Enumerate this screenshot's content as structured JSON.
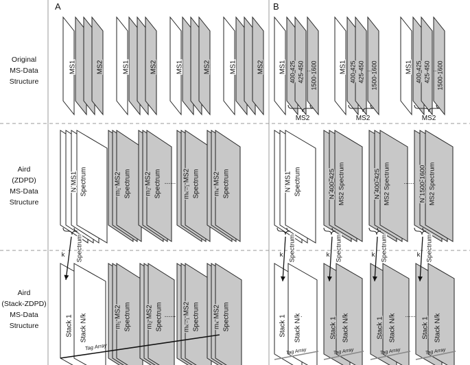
{
  "panels": {
    "a": "A",
    "b": "B"
  },
  "row_labels": {
    "original": [
      "Original",
      "MS-Data",
      "Structure"
    ],
    "zdpd": [
      "Aird",
      "(ZDPD)",
      "MS-Data",
      "Structure"
    ],
    "stack": [
      "Aird",
      "(Stack-ZDPD)",
      "MS-Data",
      "Structure"
    ]
  },
  "row1_a": {
    "ms1": "MS1",
    "ms2": "MS2"
  },
  "row1_b": {
    "ms1": "MS1",
    "w1": "400-425",
    "w2": "425-450",
    "dots": "...",
    "wn": "1500-1600",
    "ms2": "MS2"
  },
  "row2_a": {
    "ms1_l1": "N MS1",
    "ms1_l2": "Spectrum",
    "ms2_l1": [
      "m₁ MS2",
      "m₂ MS2",
      "mₖ₋₁ MS2",
      "mₖ MS2"
    ],
    "ms2_l2": "Spectrum",
    "dots": "......"
  },
  "row2_b": {
    "ms1_l1": "N MS1",
    "ms1_l2": "Spectrum",
    "g_l1": [
      "N 400-425",
      "N 400-425",
      "N 1500-1600"
    ],
    "g_l2": "MS2 Spectrum",
    "dots": "......"
  },
  "arrows": {
    "k": "k",
    "spectrum": "Spectrum"
  },
  "row3_a": {
    "stack1": "Stack 1",
    "stackn": "Stack N/k",
    "colon": "..",
    "ms2_l1": [
      "m₁ MS2",
      "m₂ MS2",
      "mₖ₋₁ MS2",
      "mₖ MS2"
    ],
    "ms2_l2": "Spectrum",
    "dots": "......",
    "tag": "Tag Array"
  },
  "row3_b": {
    "stack1": "Stack 1",
    "stackn": "Stack N/k",
    "colon": "..",
    "dots": "......",
    "tag": "Tag Array"
  },
  "colors": {
    "gray_fill": "#c8c8c8",
    "white_fill": "#ffffff",
    "stroke": "#222222",
    "divider": "#999999"
  }
}
